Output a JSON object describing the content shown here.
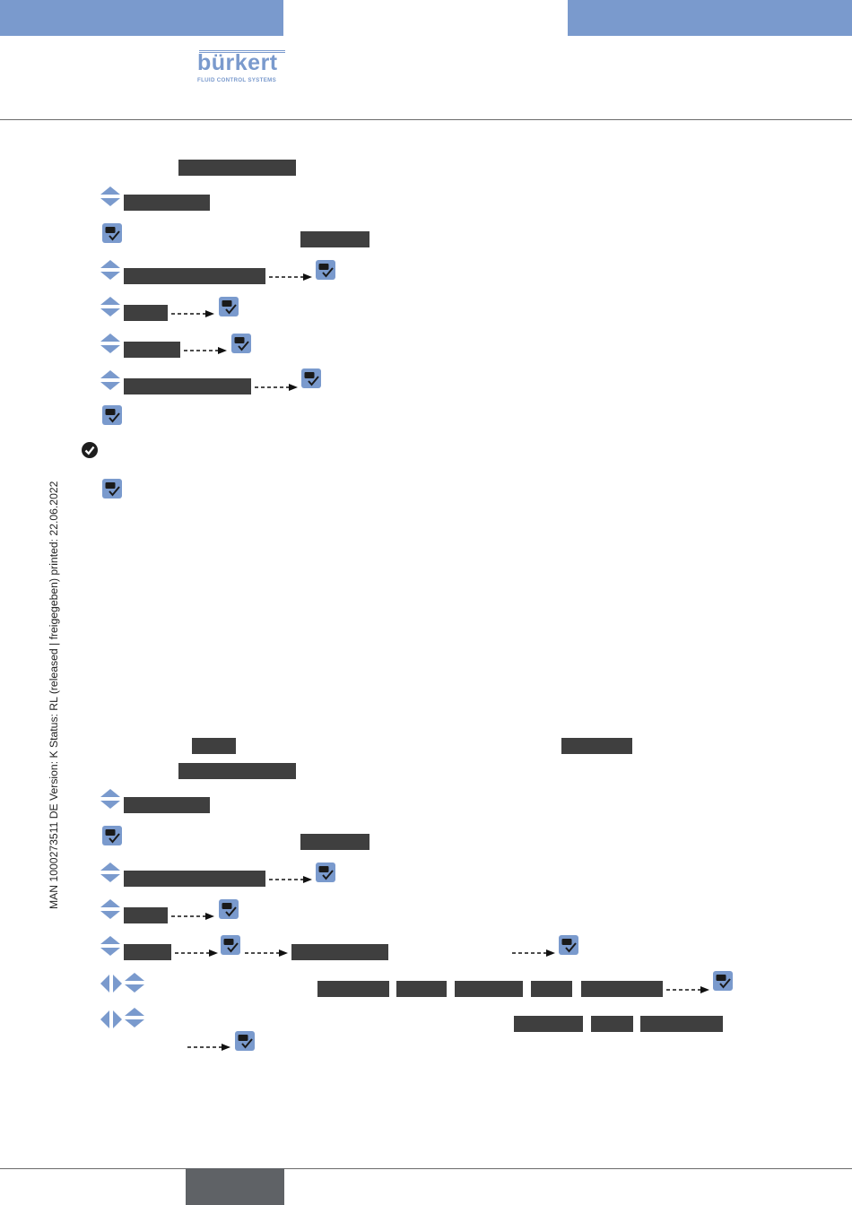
{
  "side_text": "MAN  1000273511  DE  Version: K Status: RL (released | freigegeben)  printed: 22.06.2022",
  "colors": {
    "header_bar": "#7a9acd",
    "menu_box": "#3f3f3f",
    "key_blue": "#7a9acd",
    "footer_tab": "#5f6266"
  },
  "icons": {
    "up_down": "up-down-arrow-keys-icon",
    "ok_key": "enter-key-icon",
    "left_right": "left-right-arrow-keys-icon",
    "checkmark": "result-checkmark-icon",
    "dashed_arrow": "dashed-arrow-icon"
  },
  "logo": {
    "name": "bürkert",
    "tagline": "FLUID CONTROL SYSTEMS"
  }
}
